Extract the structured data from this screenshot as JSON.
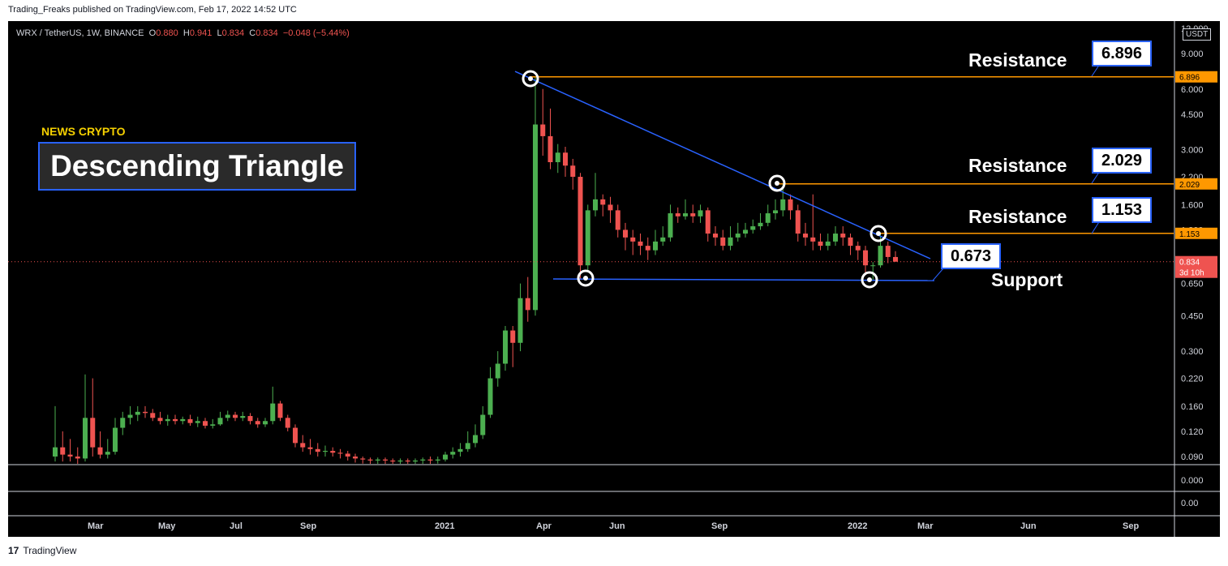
{
  "header": {
    "published": "Trading_Freaks published on TradingView.com, Feb 17, 2022 14:52 UTC"
  },
  "symbol": {
    "name": "WRX / TetherUS, 1W, BINANCE",
    "o_label": "O",
    "o": "0.880",
    "h_label": "H",
    "h": "0.941",
    "l_label": "L",
    "l": "0.834",
    "c_label": "C",
    "c": "0.834",
    "change": "−0.048 (−5.44%)"
  },
  "overlay": {
    "brand": "NEWS CRYPTO",
    "title": "Descending Triangle",
    "resistance_labels": [
      "Resistance",
      "Resistance",
      "Resistance"
    ],
    "support_label": "Support",
    "callouts": [
      "6.896",
      "2.029",
      "1.153",
      "0.673"
    ]
  },
  "footer": {
    "brand": "TradingView"
  },
  "colors": {
    "up": "#4caf50",
    "down": "#ef5350",
    "resistance": "#ff9800",
    "trend": "#2962ff",
    "background": "#000000"
  },
  "chart_data": {
    "type": "candlestick",
    "scale": "log",
    "currency": "USDT",
    "y_ticks": [
      "12.000",
      "9.000",
      "6.000",
      "4.500",
      "3.000",
      "2.200",
      "1.600",
      "1.200",
      "0.800",
      "0.650",
      "0.450",
      "0.300",
      "0.220",
      "0.160",
      "0.120",
      "0.090"
    ],
    "y_tick_values": [
      12,
      9,
      6,
      4.5,
      3,
      2.2,
      1.6,
      1.2,
      0.8,
      0.65,
      0.45,
      0.3,
      0.22,
      0.16,
      0.12,
      0.09
    ],
    "x_ticks": [
      "Mar",
      "May",
      "Jul",
      "Sep",
      "2021",
      "Apr",
      "Jun",
      "Sep",
      "2022",
      "Mar",
      "Jun",
      "Sep"
    ],
    "indicator_ticks": [
      "0.000",
      "0.00"
    ],
    "price_tags": [
      {
        "text": "6.896",
        "value": 6.896,
        "color": "#ff9800"
      },
      {
        "text": "2.029",
        "value": 2.029,
        "color": "#ff9800"
      },
      {
        "text": "1.153",
        "value": 1.153,
        "color": "#ff9800"
      },
      {
        "text": "0.834",
        "value": 0.834,
        "color": "#ef5350"
      },
      {
        "text": "3d 10h",
        "value": 0.7,
        "color": "#ef5350"
      }
    ],
    "resistance_levels": [
      6.896,
      2.029,
      1.153
    ],
    "support_level": 0.673,
    "candles": [
      [
        0.09,
        0.1,
        0.16,
        0.085
      ],
      [
        0.1,
        0.092,
        0.12,
        0.085
      ],
      [
        0.092,
        0.09,
        0.11,
        0.085
      ],
      [
        0.09,
        0.088,
        0.1,
        0.082
      ],
      [
        0.088,
        0.14,
        0.23,
        0.085
      ],
      [
        0.14,
        0.1,
        0.22,
        0.09
      ],
      [
        0.1,
        0.092,
        0.12,
        0.088
      ],
      [
        0.092,
        0.095,
        0.11,
        0.088
      ],
      [
        0.095,
        0.125,
        0.14,
        0.092
      ],
      [
        0.125,
        0.14,
        0.15,
        0.115
      ],
      [
        0.14,
        0.145,
        0.16,
        0.13
      ],
      [
        0.145,
        0.15,
        0.16,
        0.135
      ],
      [
        0.15,
        0.148,
        0.16,
        0.14
      ],
      [
        0.148,
        0.14,
        0.155,
        0.135
      ],
      [
        0.14,
        0.135,
        0.15,
        0.13
      ],
      [
        0.135,
        0.138,
        0.145,
        0.128
      ],
      [
        0.138,
        0.135,
        0.145,
        0.13
      ],
      [
        0.135,
        0.138,
        0.142,
        0.13
      ],
      [
        0.138,
        0.132,
        0.145,
        0.128
      ],
      [
        0.132,
        0.135,
        0.142,
        0.126
      ],
      [
        0.135,
        0.128,
        0.14,
        0.124
      ],
      [
        0.128,
        0.13,
        0.138,
        0.124
      ],
      [
        0.13,
        0.14,
        0.15,
        0.128
      ],
      [
        0.14,
        0.145,
        0.152,
        0.135
      ],
      [
        0.145,
        0.14,
        0.15,
        0.135
      ],
      [
        0.14,
        0.143,
        0.15,
        0.135
      ],
      [
        0.143,
        0.135,
        0.148,
        0.13
      ],
      [
        0.135,
        0.13,
        0.14,
        0.125
      ],
      [
        0.13,
        0.135,
        0.14,
        0.126
      ],
      [
        0.135,
        0.165,
        0.2,
        0.13
      ],
      [
        0.165,
        0.14,
        0.17,
        0.135
      ],
      [
        0.14,
        0.125,
        0.145,
        0.12
      ],
      [
        0.125,
        0.105,
        0.13,
        0.1
      ],
      [
        0.105,
        0.1,
        0.115,
        0.095
      ],
      [
        0.1,
        0.098,
        0.11,
        0.092
      ],
      [
        0.098,
        0.095,
        0.105,
        0.09
      ],
      [
        0.095,
        0.096,
        0.102,
        0.09
      ],
      [
        0.096,
        0.094,
        0.1,
        0.09
      ],
      [
        0.094,
        0.093,
        0.098,
        0.088
      ],
      [
        0.093,
        0.09,
        0.096,
        0.086
      ],
      [
        0.09,
        0.088,
        0.093,
        0.084
      ],
      [
        0.088,
        0.087,
        0.09,
        0.083
      ],
      [
        0.087,
        0.086,
        0.089,
        0.082
      ],
      [
        0.086,
        0.087,
        0.089,
        0.082
      ],
      [
        0.087,
        0.086,
        0.089,
        0.082
      ],
      [
        0.086,
        0.085,
        0.088,
        0.081
      ],
      [
        0.085,
        0.086,
        0.088,
        0.081
      ],
      [
        0.086,
        0.085,
        0.088,
        0.081
      ],
      [
        0.085,
        0.086,
        0.088,
        0.081
      ],
      [
        0.086,
        0.087,
        0.089,
        0.082
      ],
      [
        0.087,
        0.086,
        0.09,
        0.082
      ],
      [
        0.086,
        0.087,
        0.09,
        0.083
      ],
      [
        0.087,
        0.092,
        0.095,
        0.085
      ],
      [
        0.092,
        0.095,
        0.1,
        0.088
      ],
      [
        0.095,
        0.098,
        0.105,
        0.09
      ],
      [
        0.098,
        0.105,
        0.12,
        0.095
      ],
      [
        0.105,
        0.115,
        0.13,
        0.1
      ],
      [
        0.115,
        0.145,
        0.16,
        0.11
      ],
      [
        0.145,
        0.22,
        0.25,
        0.14
      ],
      [
        0.22,
        0.26,
        0.3,
        0.2
      ],
      [
        0.26,
        0.38,
        0.4,
        0.24
      ],
      [
        0.38,
        0.33,
        0.4,
        0.25
      ],
      [
        0.33,
        0.55,
        0.65,
        0.3
      ],
      [
        0.55,
        0.48,
        0.7,
        0.42
      ],
      [
        0.48,
        4.0,
        6.896,
        0.45
      ],
      [
        4.0,
        3.5,
        6.0,
        2.8
      ],
      [
        3.5,
        2.6,
        4.8,
        2.4
      ],
      [
        2.6,
        2.9,
        3.2,
        2.3
      ],
      [
        2.9,
        2.5,
        3.1,
        2.2
      ],
      [
        2.5,
        2.2,
        2.7,
        1.9
      ],
      [
        2.2,
        0.8,
        2.3,
        0.68
      ],
      [
        0.8,
        1.5,
        1.6,
        0.75
      ],
      [
        1.5,
        1.7,
        2.3,
        1.4
      ],
      [
        1.7,
        1.6,
        1.8,
        1.4
      ],
      [
        1.6,
        1.5,
        1.75,
        1.3
      ],
      [
        1.5,
        1.2,
        1.6,
        1.1
      ],
      [
        1.2,
        1.1,
        1.3,
        0.95
      ],
      [
        1.1,
        1.05,
        1.2,
        0.9
      ],
      [
        1.05,
        1.0,
        1.15,
        0.9
      ],
      [
        1.0,
        0.95,
        1.1,
        0.85
      ],
      [
        0.95,
        1.05,
        1.2,
        0.9
      ],
      [
        1.05,
        1.1,
        1.25,
        1.0
      ],
      [
        1.1,
        1.45,
        1.6,
        1.05
      ],
      [
        1.45,
        1.4,
        1.55,
        1.3
      ],
      [
        1.4,
        1.45,
        1.7,
        1.35
      ],
      [
        1.45,
        1.4,
        1.6,
        1.3
      ],
      [
        1.4,
        1.5,
        1.6,
        1.3
      ],
      [
        1.5,
        1.15,
        1.55,
        1.05
      ],
      [
        1.15,
        1.1,
        1.25,
        1.0
      ],
      [
        1.1,
        1.0,
        1.2,
        0.95
      ],
      [
        1.0,
        1.1,
        1.25,
        0.95
      ],
      [
        1.1,
        1.15,
        1.3,
        1.05
      ],
      [
        1.15,
        1.2,
        1.3,
        1.1
      ],
      [
        1.2,
        1.25,
        1.35,
        1.15
      ],
      [
        1.25,
        1.3,
        1.45,
        1.2
      ],
      [
        1.3,
        1.45,
        1.6,
        1.25
      ],
      [
        1.45,
        1.5,
        1.7,
        1.35
      ],
      [
        1.5,
        1.7,
        2.029,
        1.4
      ],
      [
        1.7,
        1.5,
        1.8,
        1.35
      ],
      [
        1.5,
        1.15,
        1.6,
        1.05
      ],
      [
        1.15,
        1.1,
        1.3,
        1.0
      ],
      [
        1.1,
        1.05,
        1.8,
        0.95
      ],
      [
        1.05,
        1.0,
        1.15,
        0.95
      ],
      [
        1.0,
        1.05,
        1.15,
        0.95
      ],
      [
        1.05,
        1.15,
        1.25,
        1.0
      ],
      [
        1.15,
        1.1,
        1.25,
        1.0
      ],
      [
        1.1,
        1.0,
        1.15,
        0.9
      ],
      [
        1.0,
        0.95,
        1.05,
        0.85
      ],
      [
        0.95,
        0.8,
        1.0,
        0.72
      ],
      [
        0.8,
        0.8,
        0.83,
        0.673
      ],
      [
        0.8,
        1.0,
        1.153,
        0.78
      ],
      [
        1.0,
        0.88,
        1.05,
        0.82
      ],
      [
        0.88,
        0.834,
        0.941,
        0.834
      ]
    ],
    "candle_dates": {
      "first": "2020-02-10",
      "last": "2022-02-14"
    }
  }
}
